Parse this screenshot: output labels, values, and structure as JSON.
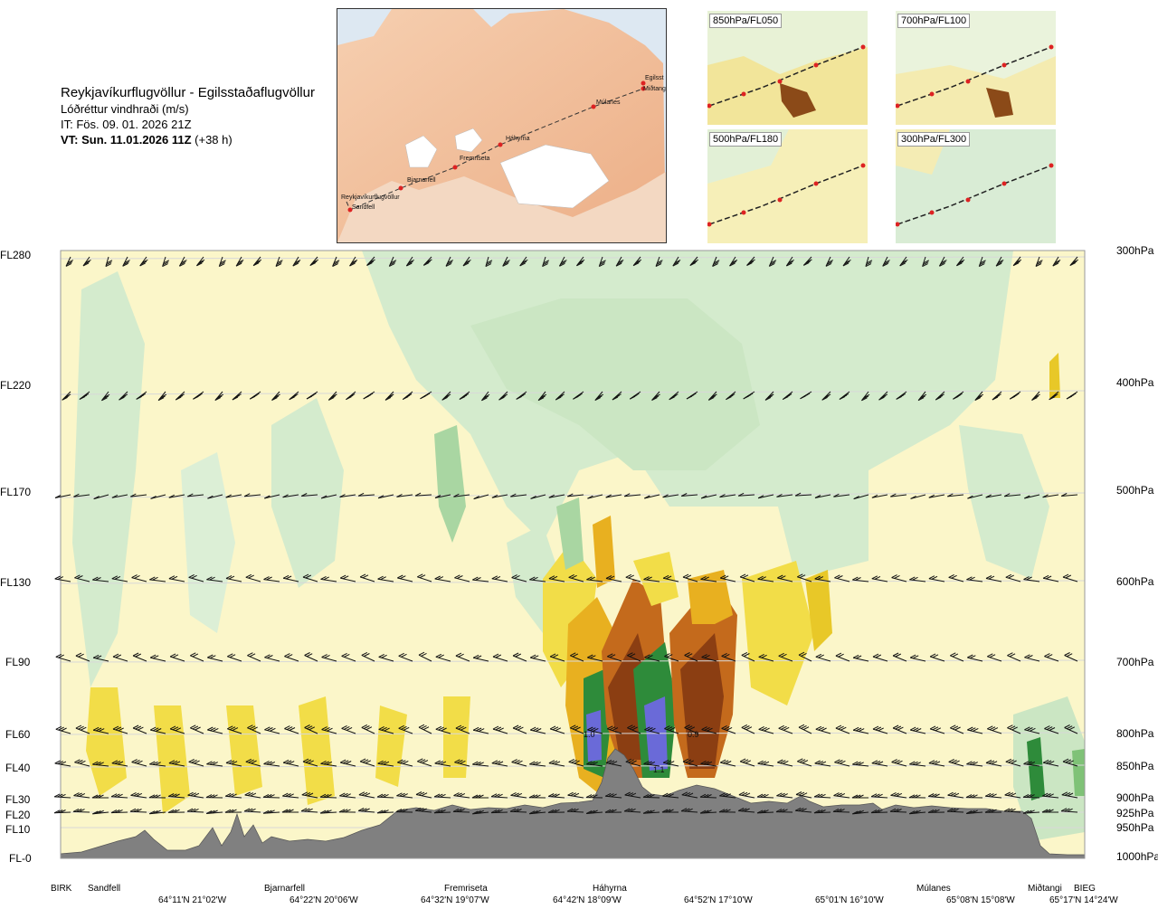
{
  "header": {
    "title": "Reykjavíkurflugvöllur - Egilsstaðaflugvöllur",
    "variable": "Lóðréttur vindhraði (m/s)",
    "issue_time": "IT: Fös. 09. 01. 2026 21Z",
    "valid_time_label": "VT: Sun. 11.01.2026 11Z",
    "valid_time_offset": "(+38 h)"
  },
  "map": {
    "route_points": [
      "Reykjavíkurflugvöllur",
      "Sandfell",
      "Bjarnarfell",
      "Fremriseta",
      "Háhyrna",
      "Múlanes",
      "Egilsst",
      "Miðtangi"
    ]
  },
  "mini_maps": [
    {
      "label": "850hPa/FL050"
    },
    {
      "label": "700hPa/FL100"
    },
    {
      "label": "500hPa/FL180"
    },
    {
      "label": "300hPa/FL300"
    }
  ],
  "chart_data": {
    "type": "heatmap",
    "title": "Lóðréttur vindhraði (m/s)",
    "y_left_levels": [
      {
        "label": "FL280",
        "hpa": 300
      },
      {
        "label": "FL220",
        "hpa": 400
      },
      {
        "label": "FL170",
        "hpa": 500
      },
      {
        "label": "FL130",
        "hpa": 600
      },
      {
        "label": "FL90",
        "hpa": 700
      },
      {
        "label": "FL60",
        "hpa": 800
      },
      {
        "label": "FL40",
        "hpa": 850
      },
      {
        "label": "FL30",
        "hpa": 900
      },
      {
        "label": "FL20",
        "hpa": 925
      },
      {
        "label": "FL10",
        "hpa": 950
      },
      {
        "label": "FL-0",
        "hpa": 1000
      }
    ],
    "y_right_labels": [
      "300hPa",
      "400hPa",
      "500hPa",
      "600hPa",
      "700hPa",
      "800hPa",
      "850hPa",
      "900hPa",
      "925hPa",
      "950hPa",
      "1000hPa"
    ],
    "x_stations": [
      "BIRK",
      "Sandfell",
      "Bjarnarfell",
      "Fremriseta",
      "Háhyrna",
      "Múlanes",
      "Miðtangi",
      "BIEG"
    ],
    "x_coords": [
      "64°11'N 21°02'W",
      "64°22'N 20°06'W",
      "64°32'N 19°07'W",
      "64°42'N 18°09'W",
      "64°52'N 17°10'W",
      "65°01'N 16°10'W",
      "65°08'N 15°08'W",
      "65°17'N 14°24'W"
    ],
    "contour_labels": [
      "1.0",
      "1.1",
      "0.9"
    ],
    "colors": {
      "strong_down": "#7a3a10",
      "down": "#c46a1c",
      "weak_down": "#e8b020",
      "slight_down": "#f5ec98",
      "neutral": "#fbf8d8",
      "slight_up": "#d6ecd3",
      "weak_up": "#a9d6a2",
      "up": "#2e8b3a",
      "strong_up": "#6a6ad8",
      "terrain": "#808080"
    }
  }
}
